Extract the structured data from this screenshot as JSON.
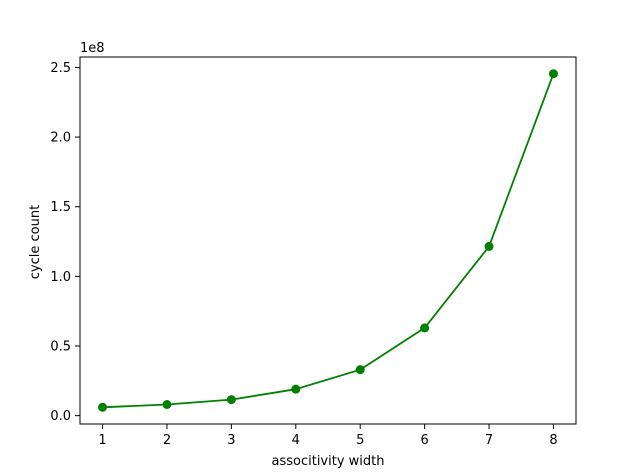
{
  "chart_data": {
    "type": "line",
    "x": [
      1,
      2,
      3,
      4,
      5,
      6,
      7,
      8
    ],
    "series": [
      {
        "values": [
          6000000,
          8000000,
          11500000,
          19000000,
          33000000,
          63000000,
          121500000,
          245500000
        ],
        "color": "#008000",
        "marker": "circle"
      }
    ],
    "xlabel": "associtivity width",
    "ylabel": "cycle count",
    "y_offset_label": "1e8",
    "xlim": [
      0.65,
      8.35
    ],
    "ylim": [
      -6000000,
      257500000
    ],
    "x_ticks": [
      1,
      2,
      3,
      4,
      5,
      6,
      7,
      8
    ],
    "x_tick_labels": [
      "1",
      "2",
      "3",
      "4",
      "5",
      "6",
      "7",
      "8"
    ],
    "y_ticks": [
      0,
      50000000,
      100000000,
      150000000,
      200000000,
      250000000
    ],
    "y_tick_labels": [
      "0.0",
      "0.5",
      "1.0",
      "1.5",
      "2.0",
      "2.5"
    ],
    "grid": false,
    "legend": "none"
  }
}
